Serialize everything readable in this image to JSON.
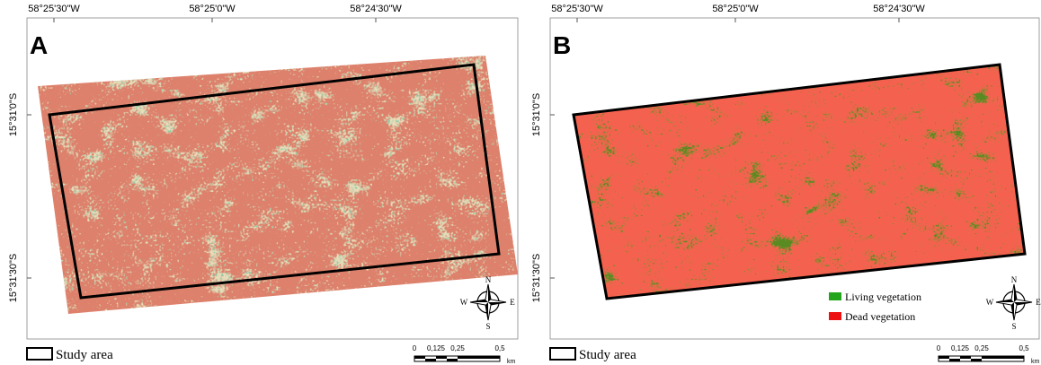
{
  "panels": [
    {
      "label": "A",
      "lon_labels": [
        "58°25'30\"W",
        "58°25'0\"W",
        "58°24'30\"W"
      ],
      "lat_labels": [
        "15°31'0\"S",
        "15°31'30\"S"
      ],
      "legend": "Study area",
      "compass": {
        "n": "N",
        "s": "S",
        "w": "W",
        "e": "E"
      },
      "scale": {
        "ticks": [
          "0",
          "0,125",
          "0,25",
          "0,5"
        ],
        "unit": "km"
      }
    },
    {
      "label": "B",
      "lon_labels": [
        "58°25'30\"W",
        "58°25'0\"W",
        "58°24'30\"W"
      ],
      "lat_labels": [
        "15°31'0\"S",
        "15°31'30\"S"
      ],
      "legend": "Study area",
      "classes": [
        "Living vegetation",
        "Dead vegetation"
      ],
      "compass": {
        "n": "N",
        "s": "S",
        "w": "W",
        "e": "E"
      },
      "scale": {
        "ticks": [
          "0",
          "0,125",
          "0,25",
          "0,5"
        ],
        "unit": "km"
      }
    }
  ]
}
